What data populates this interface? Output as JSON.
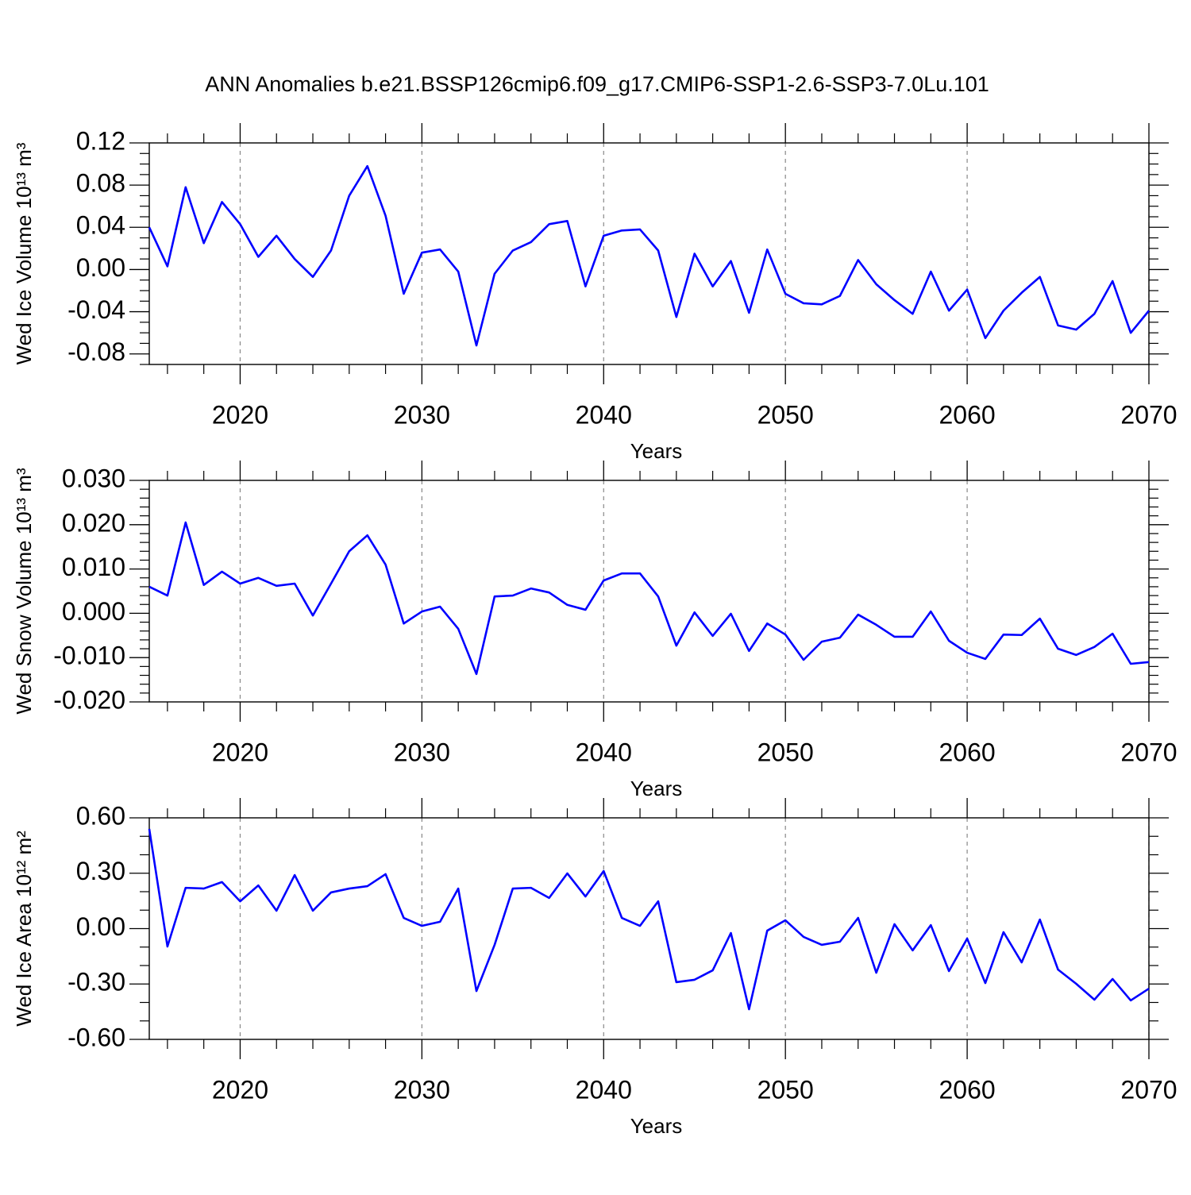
{
  "chart_data": [
    {
      "type": "line",
      "title": "ANN Anomalies b.e21.BSSP126cmip6.f09_g17.CMIP6-SSP1-2.6-SSP3-7.0Lu.101",
      "ylabel": "Wed Ice Volume 10¹³ m³",
      "xlabel": "Years",
      "color": "#0000ff",
      "grid": true,
      "x": [
        2015,
        2016,
        2017,
        2018,
        2019,
        2020,
        2021,
        2022,
        2023,
        2024,
        2025,
        2026,
        2027,
        2028,
        2029,
        2030,
        2031,
        2032,
        2033,
        2034,
        2035,
        2036,
        2037,
        2038,
        2039,
        2040,
        2041,
        2042,
        2043,
        2044,
        2045,
        2046,
        2047,
        2048,
        2049,
        2050,
        2051,
        2052,
        2053,
        2054,
        2055,
        2056,
        2057,
        2058,
        2059,
        2060,
        2061,
        2062,
        2063,
        2064,
        2065,
        2066,
        2067,
        2068,
        2069,
        2070
      ],
      "values": [
        0.04,
        0.003,
        0.078,
        0.025,
        0.064,
        0.043,
        0.012,
        0.032,
        0.01,
        -0.007,
        0.018,
        0.07,
        0.098,
        0.051,
        -0.023,
        0.016,
        0.019,
        -0.002,
        -0.072,
        -0.004,
        0.018,
        0.026,
        0.043,
        0.046,
        -0.016,
        0.032,
        0.037,
        0.038,
        0.018,
        -0.045,
        0.015,
        -0.016,
        0.008,
        -0.041,
        0.019,
        -0.023,
        -0.032,
        -0.033,
        -0.025,
        0.009,
        -0.014,
        -0.029,
        -0.042,
        -0.002,
        -0.039,
        -0.019,
        -0.065,
        -0.039,
        -0.022,
        -0.007,
        -0.053,
        -0.057,
        -0.042,
        -0.011,
        -0.06,
        -0.039
      ],
      "xlim": [
        2015,
        2070
      ],
      "xticks": [
        2020,
        2030,
        2040,
        2050,
        2060,
        2070
      ],
      "xminorticks": [
        2016,
        2018,
        2022,
        2024,
        2026,
        2028,
        2032,
        2034,
        2036,
        2038,
        2042,
        2044,
        2046,
        2048,
        2052,
        2054,
        2056,
        2058,
        2062,
        2064,
        2066,
        2068
      ],
      "ylim": [
        -0.09,
        0.12
      ],
      "yticks": [
        0.12,
        0.08,
        0.04,
        {
          "value": 0,
          "label": "0.00"
        },
        -0.04,
        -0.08
      ],
      "yminorticks": [
        -0.09,
        -0.07,
        -0.06,
        -0.05,
        -0.03,
        -0.02,
        -0.01,
        0.01,
        0.02,
        0.03,
        0.05,
        0.06,
        0.07,
        0.09,
        0.1,
        0.11
      ]
    },
    {
      "type": "line",
      "ylabel": "Wed Snow Volume 10¹³ m³",
      "xlabel": "Years",
      "color": "#0000ff",
      "grid": true,
      "x": [
        2015,
        2016,
        2017,
        2018,
        2019,
        2020,
        2021,
        2022,
        2023,
        2024,
        2025,
        2026,
        2027,
        2028,
        2029,
        2030,
        2031,
        2032,
        2033,
        2034,
        2035,
        2036,
        2037,
        2038,
        2039,
        2040,
        2041,
        2042,
        2043,
        2044,
        2045,
        2046,
        2047,
        2048,
        2049,
        2050,
        2051,
        2052,
        2053,
        2054,
        2055,
        2056,
        2057,
        2058,
        2059,
        2060,
        2061,
        2062,
        2063,
        2064,
        2065,
        2066,
        2067,
        2068,
        2069,
        2070
      ],
      "values": [
        0.006,
        0.004,
        0.0205,
        0.0064,
        0.0094,
        0.0067,
        0.008,
        0.0062,
        0.0067,
        -0.0005,
        0.0067,
        0.014,
        0.0176,
        0.011,
        -0.0023,
        0.0004,
        0.0015,
        -0.0035,
        -0.0137,
        0.0038,
        0.004,
        0.0056,
        0.0047,
        0.0019,
        0.0008,
        0.0074,
        0.009,
        0.009,
        0.0038,
        -0.0073,
        0.0002,
        -0.0051,
        -0.0001,
        -0.0085,
        -0.0023,
        -0.0048,
        -0.0105,
        -0.0064,
        -0.0055,
        -0.0003,
        -0.0026,
        -0.0053,
        -0.0053,
        0.0004,
        -0.0062,
        -0.0089,
        -0.0103,
        -0.0048,
        -0.0049,
        -0.0012,
        -0.008,
        -0.0094,
        -0.0076,
        -0.0046,
        -0.0114,
        -0.011
      ],
      "xlim": [
        2015,
        2070
      ],
      "xticks": [
        2020,
        2030,
        2040,
        2050,
        2060,
        2070
      ],
      "xminorticks": [
        2016,
        2018,
        2022,
        2024,
        2026,
        2028,
        2032,
        2034,
        2036,
        2038,
        2042,
        2044,
        2046,
        2048,
        2052,
        2054,
        2056,
        2058,
        2062,
        2064,
        2066,
        2068
      ],
      "ylim": [
        -0.02,
        0.03
      ],
      "yticks": [
        {
          "value": 0.03,
          "label": "0.030"
        },
        {
          "value": 0.02,
          "label": "0.020"
        },
        {
          "value": 0.01,
          "label": "0.010"
        },
        {
          "value": 0,
          "label": "0.000"
        },
        {
          "value": -0.01,
          "label": "-0.010"
        },
        {
          "value": -0.02,
          "label": "-0.020"
        }
      ],
      "yminorticks": [
        -0.018,
        -0.016,
        -0.014,
        -0.012,
        -0.008,
        -0.006,
        -0.004,
        -0.002,
        0.002,
        0.004,
        0.006,
        0.008,
        0.012,
        0.014,
        0.016,
        0.018,
        0.022,
        0.024,
        0.026,
        0.028
      ]
    },
    {
      "type": "line",
      "ylabel": "Wed Ice Area 10¹² m²",
      "xlabel": "Years",
      "color": "#0000ff",
      "grid": true,
      "x": [
        2015,
        2016,
        2017,
        2018,
        2019,
        2020,
        2021,
        2022,
        2023,
        2024,
        2025,
        2026,
        2027,
        2028,
        2029,
        2030,
        2031,
        2032,
        2033,
        2034,
        2035,
        2036,
        2037,
        2038,
        2039,
        2040,
        2041,
        2042,
        2043,
        2044,
        2045,
        2046,
        2047,
        2048,
        2049,
        2050,
        2051,
        2052,
        2053,
        2054,
        2055,
        2056,
        2057,
        2058,
        2059,
        2060,
        2061,
        2062,
        2063,
        2064,
        2065,
        2066,
        2067,
        2068,
        2069,
        2070
      ],
      "values": [
        0.54,
        -0.097,
        0.221,
        0.217,
        0.252,
        0.148,
        0.234,
        0.097,
        0.29,
        0.097,
        0.196,
        0.217,
        0.23,
        0.295,
        0.058,
        0.015,
        0.037,
        0.217,
        -0.338,
        -0.088,
        0.217,
        0.221,
        0.166,
        0.299,
        0.174,
        0.312,
        0.058,
        0.015,
        0.148,
        -0.29,
        -0.277,
        -0.226,
        -0.024,
        -0.437,
        -0.011,
        0.045,
        -0.045,
        -0.088,
        -0.071,
        0.058,
        -0.239,
        0.024,
        -0.118,
        0.019,
        -0.23,
        -0.054,
        -0.295,
        -0.019,
        -0.183,
        0.049,
        -0.222,
        -0.299,
        -0.385,
        -0.273,
        -0.389,
        -0.325
      ],
      "xlim": [
        2015,
        2070
      ],
      "xticks": [
        2020,
        2030,
        2040,
        2050,
        2060,
        2070
      ],
      "xminorticks": [
        2016,
        2018,
        2022,
        2024,
        2026,
        2028,
        2032,
        2034,
        2036,
        2038,
        2042,
        2044,
        2046,
        2048,
        2052,
        2054,
        2056,
        2058,
        2062,
        2064,
        2066,
        2068
      ],
      "ylim": [
        -0.6,
        0.6
      ],
      "yticks": [
        {
          "value": 0.6,
          "label": "0.60"
        },
        {
          "value": 0.3,
          "label": "0.30"
        },
        {
          "value": 0,
          "label": "0.00"
        },
        {
          "value": -0.3,
          "label": "-0.30"
        },
        {
          "value": -0.6,
          "label": "-0.60"
        }
      ],
      "yminorticks": [
        -0.5,
        -0.4,
        -0.2,
        -0.1,
        0.1,
        0.2,
        0.4,
        0.5
      ]
    }
  ]
}
